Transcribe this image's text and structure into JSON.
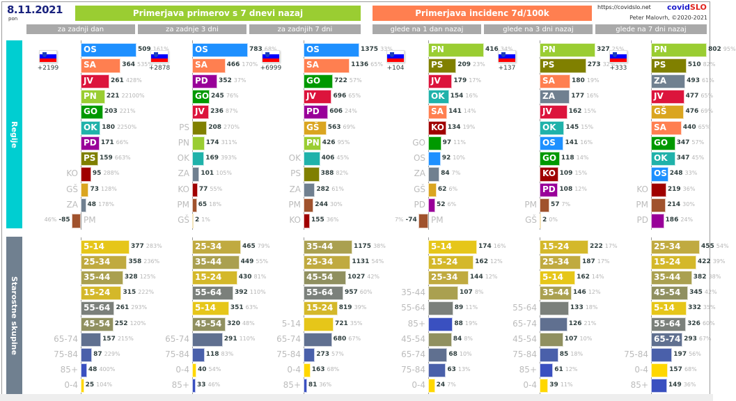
{
  "header": {
    "date": "8.11.2021",
    "weekday": "pon",
    "banner_cases": "Primerjava primerov s 7 dnevi nazaj",
    "banner_incidence": "Primerjava incidenc 7d/100k",
    "site_url": "https://covidslo.net",
    "brand_part1": "covid",
    "brand_part2": "SLO",
    "author": "Peter Malovrh, ©2020-2021",
    "subheaders": [
      "za zadnji dan",
      "za zadnje 3 dni",
      "za zadnjih 7 dni",
      "glede na 1 dan nazaj",
      "glede na 3 dni nazaj",
      "glede na 7 dni nazaj"
    ]
  },
  "sidebar": {
    "regions_label": "Regije",
    "age_label": "Starostne skupine"
  },
  "colors": {
    "OS": "#1e90ff",
    "SA": "#ff7f50",
    "JV": "#dc143c",
    "PN": "#9acd32",
    "GO": "#009900",
    "OK": "#20b2aa",
    "PD": "#990099",
    "PS": "#808000",
    "KO": "#a00000",
    "GŠ": "#daa520",
    "ZA": "#708090",
    "PM": "#a0522d",
    "0-4": "#ffd700",
    "5-14": "#e6c619",
    "15-24": "#d4b82a",
    "25-34": "#c0aa40",
    "35-44": "#aaa050",
    "45-54": "#909060",
    "55-64": "#7b807b",
    "65-74": "#607090",
    "75-84": "#4a60aa",
    "85+": "#3a50c0"
  },
  "chart_data": [
    {
      "type": "bar",
      "title": "za zadnji dan",
      "group": "Regije",
      "total_delta": "+2199",
      "rows": [
        {
          "label": "OS",
          "value": 509,
          "pct": "161%"
        },
        {
          "label": "SA",
          "value": 364,
          "pct": "535%"
        },
        {
          "label": "JV",
          "value": 261,
          "pct": "428%"
        },
        {
          "label": "PN",
          "value": 221,
          "pct": "22100%"
        },
        {
          "label": "GO",
          "value": 203,
          "pct": "221%"
        },
        {
          "label": "OK",
          "value": 180,
          "pct": "2250%"
        },
        {
          "label": "PD",
          "value": 171,
          "pct": "66%"
        },
        {
          "label": "PS",
          "value": 159,
          "pct": "663%"
        },
        {
          "label": "KO",
          "value": 95,
          "pct": "288%"
        },
        {
          "label": "GŠ",
          "value": 73,
          "pct": "128%"
        },
        {
          "label": "ZA",
          "value": 48,
          "pct": "178%"
        },
        {
          "label": "PM",
          "value": -85,
          "pct": "46%"
        }
      ]
    },
    {
      "type": "bar",
      "title": "za zadnje 3 dni",
      "group": "Regije",
      "total_delta": "+2878",
      "rows": [
        {
          "label": "OS",
          "value": 783,
          "pct": "68%"
        },
        {
          "label": "SA",
          "value": 466,
          "pct": "170%"
        },
        {
          "label": "PD",
          "value": 352,
          "pct": "37%"
        },
        {
          "label": "GO",
          "value": 245,
          "pct": "76%"
        },
        {
          "label": "JV",
          "value": 236,
          "pct": "87%"
        },
        {
          "label": "PS",
          "value": 208,
          "pct": "270%"
        },
        {
          "label": "PN",
          "value": 174,
          "pct": "311%"
        },
        {
          "label": "OK",
          "value": 169,
          "pct": "393%"
        },
        {
          "label": "ZA",
          "value": 101,
          "pct": "105%"
        },
        {
          "label": "KO",
          "value": 77,
          "pct": "55%"
        },
        {
          "label": "PM",
          "value": 65,
          "pct": "18%"
        },
        {
          "label": "GŠ",
          "value": 2,
          "pct": "1%"
        }
      ]
    },
    {
      "type": "bar",
      "title": "za zadnjih 7 dni",
      "group": "Regije",
      "total_delta": "+6999",
      "rows": [
        {
          "label": "OS",
          "value": 1375,
          "pct": "33%"
        },
        {
          "label": "SA",
          "value": 1136,
          "pct": "65%"
        },
        {
          "label": "GO",
          "value": 722,
          "pct": "57%"
        },
        {
          "label": "JV",
          "value": 696,
          "pct": "65%"
        },
        {
          "label": "PD",
          "value": 606,
          "pct": "24%"
        },
        {
          "label": "GŠ",
          "value": 563,
          "pct": "69%"
        },
        {
          "label": "PN",
          "value": 426,
          "pct": "95%"
        },
        {
          "label": "OK",
          "value": 406,
          "pct": "45%"
        },
        {
          "label": "PS",
          "value": 388,
          "pct": "82%"
        },
        {
          "label": "ZA",
          "value": 282,
          "pct": "61%"
        },
        {
          "label": "PM",
          "value": 244,
          "pct": "30%"
        },
        {
          "label": "KO",
          "value": 155,
          "pct": "36%"
        }
      ]
    },
    {
      "type": "bar",
      "title": "glede na 1 dan nazaj",
      "group": "Regije",
      "total_delta": "+104",
      "rows": [
        {
          "label": "PN",
          "value": 416,
          "pct": "34%"
        },
        {
          "label": "PS",
          "value": 209,
          "pct": "23%"
        },
        {
          "label": "JV",
          "value": 179,
          "pct": "17%"
        },
        {
          "label": "OK",
          "value": 154,
          "pct": "16%"
        },
        {
          "label": "SA",
          "value": 141,
          "pct": "14%"
        },
        {
          "label": "KO",
          "value": 134,
          "pct": "19%"
        },
        {
          "label": "GO",
          "value": 97,
          "pct": "11%"
        },
        {
          "label": "OS",
          "value": 92,
          "pct": "10%"
        },
        {
          "label": "ZA",
          "value": 84,
          "pct": "7%"
        },
        {
          "label": "GŠ",
          "value": 62,
          "pct": "6%"
        },
        {
          "label": "PD",
          "value": 52,
          "pct": "6%"
        },
        {
          "label": "PM",
          "value": -74,
          "pct": "7%"
        }
      ]
    },
    {
      "type": "bar",
      "title": "glede na 3 dni nazaj",
      "group": "Regije",
      "total_delta": "+137",
      "rows": [
        {
          "label": "PN",
          "value": 327,
          "pct": "25%"
        },
        {
          "label": "PS",
          "value": 273,
          "pct": "32%"
        },
        {
          "label": "SA",
          "value": 180,
          "pct": "19%"
        },
        {
          "label": "ZA",
          "value": 177,
          "pct": "16%"
        },
        {
          "label": "JV",
          "value": 162,
          "pct": "15%"
        },
        {
          "label": "OK",
          "value": 145,
          "pct": "15%"
        },
        {
          "label": "OS",
          "value": 141,
          "pct": "16%"
        },
        {
          "label": "GO",
          "value": 118,
          "pct": "14%"
        },
        {
          "label": "KO",
          "value": 109,
          "pct": "15%"
        },
        {
          "label": "PD",
          "value": 108,
          "pct": "12%"
        },
        {
          "label": "PM",
          "value": 57,
          "pct": "7%"
        },
        {
          "label": "GŠ",
          "value": 2,
          "pct": "0%"
        }
      ]
    },
    {
      "type": "bar",
      "title": "glede na 7 dni nazaj",
      "group": "Regije",
      "total_delta": "+333",
      "rows": [
        {
          "label": "PN",
          "value": 802,
          "pct": "95%"
        },
        {
          "label": "PS",
          "value": 510,
          "pct": "82%"
        },
        {
          "label": "ZA",
          "value": 493,
          "pct": "61%"
        },
        {
          "label": "JV",
          "value": 477,
          "pct": "65%"
        },
        {
          "label": "GŠ",
          "value": 476,
          "pct": "69%"
        },
        {
          "label": "SA",
          "value": 440,
          "pct": "65%"
        },
        {
          "label": "GO",
          "value": 347,
          "pct": "57%"
        },
        {
          "label": "OK",
          "value": 347,
          "pct": "45%"
        },
        {
          "label": "OS",
          "value": 248,
          "pct": "33%"
        },
        {
          "label": "KO",
          "value": 219,
          "pct": "36%"
        },
        {
          "label": "PM",
          "value": 214,
          "pct": "30%"
        },
        {
          "label": "PD",
          "value": 186,
          "pct": "24%"
        }
      ]
    },
    {
      "type": "bar",
      "title": "za zadnji dan",
      "group": "Starostne skupine",
      "rows": [
        {
          "label": "5-14",
          "value": 377,
          "pct": "283%"
        },
        {
          "label": "25-34",
          "value": 358,
          "pct": "236%"
        },
        {
          "label": "35-44",
          "value": 328,
          "pct": "125%"
        },
        {
          "label": "15-24",
          "value": 315,
          "pct": "222%"
        },
        {
          "label": "55-64",
          "value": 261,
          "pct": "293%"
        },
        {
          "label": "45-54",
          "value": 252,
          "pct": "120%"
        },
        {
          "label": "65-74",
          "value": 157,
          "pct": "215%"
        },
        {
          "label": "75-84",
          "value": 87,
          "pct": "229%"
        },
        {
          "label": "85+",
          "value": 48,
          "pct": "400%"
        },
        {
          "label": "0-4",
          "value": 25,
          "pct": "104%"
        }
      ]
    },
    {
      "type": "bar",
      "title": "za zadnje 3 dni",
      "group": "Starostne skupine",
      "rows": [
        {
          "label": "25-34",
          "value": 465,
          "pct": "79%"
        },
        {
          "label": "35-44",
          "value": 449,
          "pct": "55%"
        },
        {
          "label": "15-24",
          "value": 430,
          "pct": "81%"
        },
        {
          "label": "55-64",
          "value": 392,
          "pct": "110%"
        },
        {
          "label": "5-14",
          "value": 351,
          "pct": "63%"
        },
        {
          "label": "45-54",
          "value": 320,
          "pct": "48%"
        },
        {
          "label": "65-74",
          "value": 291,
          "pct": "110%"
        },
        {
          "label": "75-84",
          "value": 118,
          "pct": "83%"
        },
        {
          "label": "0-4",
          "value": 40,
          "pct": "54%"
        },
        {
          "label": "85+",
          "value": 33,
          "pct": "46%"
        }
      ]
    },
    {
      "type": "bar",
      "title": "za zadnjih 7 dni",
      "group": "Starostne skupine",
      "rows": [
        {
          "label": "35-44",
          "value": 1175,
          "pct": "38%"
        },
        {
          "label": "25-34",
          "value": 1131,
          "pct": "54%"
        },
        {
          "label": "45-54",
          "value": 1027,
          "pct": "42%"
        },
        {
          "label": "55-64",
          "value": 957,
          "pct": "60%"
        },
        {
          "label": "15-24",
          "value": 819,
          "pct": "39%"
        },
        {
          "label": "5-14",
          "value": 721,
          "pct": "35%"
        },
        {
          "label": "65-74",
          "value": 680,
          "pct": "67%"
        },
        {
          "label": "75-84",
          "value": 273,
          "pct": "57%"
        },
        {
          "label": "0-4",
          "value": 163,
          "pct": "68%"
        },
        {
          "label": "85+",
          "value": 81,
          "pct": "36%"
        }
      ]
    },
    {
      "type": "bar",
      "title": "glede na 1 dan nazaj",
      "group": "Starostne skupine",
      "rows": [
        {
          "label": "5-14",
          "value": 174,
          "pct": "16%"
        },
        {
          "label": "15-24",
          "value": 162,
          "pct": "12%"
        },
        {
          "label": "25-34",
          "value": 144,
          "pct": "12%"
        },
        {
          "label": "35-44",
          "value": 107,
          "pct": "8%"
        },
        {
          "label": "55-64",
          "value": 89,
          "pct": "11%"
        },
        {
          "label": "85+",
          "value": 88,
          "pct": "19%"
        },
        {
          "label": "45-54",
          "value": 84,
          "pct": "8%"
        },
        {
          "label": "65-74",
          "value": 68,
          "pct": "10%"
        },
        {
          "label": "75-84",
          "value": 63,
          "pct": "13%"
        },
        {
          "label": "0-4",
          "value": 24,
          "pct": "7%"
        }
      ]
    },
    {
      "type": "bar",
      "title": "glede na 3 dni nazaj",
      "group": "Starostne skupine",
      "rows": [
        {
          "label": "15-24",
          "value": 222,
          "pct": "17%"
        },
        {
          "label": "25-34",
          "value": 187,
          "pct": "17%"
        },
        {
          "label": "5-14",
          "value": 162,
          "pct": "14%"
        },
        {
          "label": "35-44",
          "value": 146,
          "pct": "12%"
        },
        {
          "label": "55-64",
          "value": 133,
          "pct": "18%"
        },
        {
          "label": "65-74",
          "value": 126,
          "pct": "21%"
        },
        {
          "label": "45-54",
          "value": 107,
          "pct": "10%"
        },
        {
          "label": "75-84",
          "value": 85,
          "pct": "18%"
        },
        {
          "label": "85+",
          "value": 61,
          "pct": "12%"
        },
        {
          "label": "0-4",
          "value": 39,
          "pct": "11%"
        }
      ]
    },
    {
      "type": "bar",
      "title": "glede na 7 dni nazaj",
      "group": "Starostne skupine",
      "rows": [
        {
          "label": "25-34",
          "value": 455,
          "pct": "54%"
        },
        {
          "label": "15-24",
          "value": 422,
          "pct": "39%"
        },
        {
          "label": "35-44",
          "value": 382,
          "pct": "38%"
        },
        {
          "label": "45-54",
          "value": 345,
          "pct": "42%"
        },
        {
          "label": "5-14",
          "value": 332,
          "pct": "35%"
        },
        {
          "label": "55-64",
          "value": 326,
          "pct": "60%"
        },
        {
          "label": "65-74",
          "value": 293,
          "pct": "67%"
        },
        {
          "label": "75-84",
          "value": 197,
          "pct": "56%"
        },
        {
          "label": "0-4",
          "value": 157,
          "pct": "68%"
        },
        {
          "label": "85+",
          "value": 149,
          "pct": "36%"
        }
      ]
    }
  ]
}
